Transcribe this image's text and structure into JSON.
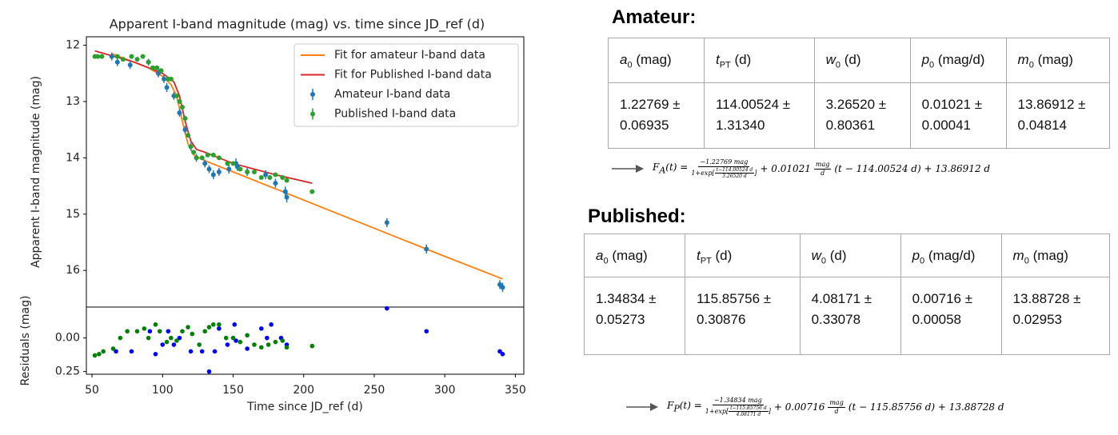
{
  "chart_data": [
    {
      "type": "scatter",
      "title": "Apparent I-band magnitude (mag) vs. time since JD_ref (d)",
      "y_label": "Apparent I-band magnitude (mag)",
      "xlim": [
        46,
        356
      ],
      "ylim": [
        11.85,
        16.65
      ],
      "y_inverted": true,
      "yticks": [
        12,
        13,
        14,
        15,
        16
      ],
      "legend": "upper right",
      "series": [
        {
          "name": "Fit for amateur I-band data",
          "color": "#ff7f0e",
          "style": "line",
          "x": [
            64,
            90,
            100,
            106,
            110,
            114,
            118,
            122,
            130,
            150,
            200,
            250,
            300,
            341
          ],
          "values": [
            12.15,
            12.4,
            12.55,
            12.7,
            12.9,
            13.35,
            13.75,
            13.95,
            14.05,
            14.25,
            14.75,
            15.25,
            15.75,
            16.15
          ]
        },
        {
          "name": "Fit for Published I-band data",
          "color": "#d62728",
          "style": "line",
          "x": [
            52,
            80,
            100,
            108,
            112,
            116,
            120,
            124,
            130,
            150,
            180,
            206
          ],
          "values": [
            12.1,
            12.3,
            12.5,
            12.65,
            12.9,
            13.35,
            13.7,
            13.85,
            13.9,
            14.1,
            14.3,
            14.45
          ]
        },
        {
          "name": "Amateur I-band data",
          "color": "#1f77b4",
          "style": "errorbar",
          "x": [
            64,
            68,
            77,
            90,
            97,
            101,
            103,
            108,
            112,
            116,
            120,
            124,
            130,
            133,
            136,
            140,
            147,
            152,
            153,
            160,
            173,
            180,
            187,
            188,
            259,
            287,
            339,
            341
          ],
          "values": [
            12.2,
            12.3,
            12.35,
            12.3,
            12.5,
            12.6,
            12.75,
            12.9,
            13.2,
            13.5,
            13.8,
            14.0,
            14.1,
            14.2,
            14.3,
            14.25,
            14.2,
            14.1,
            14.15,
            14.25,
            14.3,
            14.45,
            14.6,
            14.7,
            15.15,
            15.62,
            16.25,
            16.3
          ],
          "errors": [
            0.07,
            0.07,
            0.07,
            0.06,
            0.07,
            0.07,
            0.08,
            0.07,
            0.07,
            0.07,
            0.07,
            0.07,
            0.07,
            0.07,
            0.08,
            0.07,
            0.08,
            0.09,
            0.08,
            0.07,
            0.08,
            0.08,
            0.09,
            0.09,
            0.08,
            0.08,
            0.08,
            0.08
          ]
        },
        {
          "name": "Published I-band data",
          "color": "#2ca02c",
          "style": "errorbar",
          "x": [
            52,
            54,
            57,
            68,
            72,
            78,
            82,
            86,
            90,
            93,
            96,
            99,
            104,
            106,
            110,
            112,
            114,
            116,
            118,
            120,
            122,
            124,
            128,
            132,
            136,
            140,
            146,
            150,
            155,
            160,
            165,
            170,
            176,
            180,
            185,
            188,
            206
          ],
          "values": [
            12.2,
            12.2,
            12.2,
            12.2,
            12.25,
            12.2,
            12.25,
            12.2,
            12.3,
            12.4,
            12.4,
            12.45,
            12.6,
            12.6,
            12.9,
            13.0,
            13.1,
            13.3,
            13.6,
            13.8,
            13.9,
            14.0,
            14.0,
            13.95,
            13.95,
            14.0,
            14.1,
            14.1,
            14.2,
            14.25,
            14.25,
            14.35,
            14.35,
            14.3,
            14.35,
            14.4,
            14.6
          ],
          "errors": [
            0.03,
            0.03,
            0.03,
            0.03,
            0.03,
            0.03,
            0.03,
            0.03,
            0.03,
            0.03,
            0.03,
            0.03,
            0.03,
            0.03,
            0.03,
            0.03,
            0.03,
            0.03,
            0.03,
            0.03,
            0.03,
            0.03,
            0.03,
            0.03,
            0.03,
            0.03,
            0.03,
            0.03,
            0.03,
            0.03,
            0.03,
            0.03,
            0.03,
            0.03,
            0.03,
            0.03,
            0.03
          ]
        }
      ]
    },
    {
      "type": "scatter",
      "x_label": "Time since JD_ref (d)",
      "y_label": "Residuals (mag)",
      "xlim": [
        46,
        356
      ],
      "ylim": [
        -0.23,
        0.27
      ],
      "y_inverted": true,
      "xticks": [
        50,
        100,
        150,
        200,
        250,
        300,
        350
      ],
      "yticks": [
        {
          "value": 0,
          "label": "0.00"
        },
        {
          "value": 0.25,
          "label": "0.25"
        }
      ],
      "series": [
        {
          "color": "#0000ff",
          "style": "dot",
          "x": [
            67,
            78,
            91,
            95,
            100,
            104,
            108,
            112,
            120,
            128,
            133,
            137,
            140,
            146,
            151,
            152,
            160,
            170,
            174,
            177,
            184,
            188,
            259,
            287,
            339,
            341
          ],
          "values": [
            0.1,
            0.1,
            -0.05,
            0.12,
            0.05,
            -0.05,
            0.05,
            0.0,
            0.1,
            0.1,
            0.25,
            0.1,
            -0.07,
            0.05,
            -0.1,
            0.02,
            0.08,
            -0.07,
            0.0,
            -0.1,
            0.0,
            0.05,
            -0.22,
            -0.05,
            0.1,
            0.12
          ]
        },
        {
          "color": "#008000",
          "style": "dot",
          "x": [
            52,
            55,
            58,
            65,
            70,
            75,
            82,
            87,
            90,
            95,
            98,
            103,
            106,
            110,
            114,
            118,
            121,
            126,
            130,
            133,
            136,
            140,
            145,
            150,
            155,
            160,
            165,
            170,
            175,
            180,
            185,
            188,
            206
          ],
          "values": [
            0.13,
            0.12,
            0.1,
            0.08,
            0.0,
            -0.05,
            -0.05,
            -0.07,
            0.0,
            -0.1,
            -0.05,
            0.03,
            0.0,
            0.02,
            -0.05,
            -0.08,
            -0.03,
            0.05,
            -0.05,
            -0.08,
            -0.1,
            -0.1,
            0.0,
            0.0,
            0.03,
            -0.02,
            0.05,
            0.07,
            0.05,
            0.03,
            0.02,
            0.07,
            0.06
          ]
        }
      ]
    }
  ],
  "amateur": {
    "heading": "Amateur:",
    "table": {
      "header": [
        {
          "symbol": "a",
          "sub": "0",
          "unit": "(mag)"
        },
        {
          "symbol": "t",
          "sub": "PT",
          "unit": "(d)"
        },
        {
          "symbol": "w",
          "sub": "0",
          "unit": "(d)"
        },
        {
          "symbol": "p",
          "sub": "0",
          "unit": "(mag/d)"
        },
        {
          "symbol": "m",
          "sub": "0",
          "unit": "(mag)"
        }
      ],
      "row": [
        "1.22769 ± 0.06935",
        "114.00524 ± 1.31340",
        "3.26520 ± 0.80361",
        "0.01021 ± 0.00041",
        "13.86912 ± 0.04814"
      ]
    },
    "formula": {
      "lhs": "F",
      "lhs_sub": "A",
      "lhs_arg": "(t) =",
      "num": "−1.22769 mag",
      "den_pre": "1+exp[",
      "den_num": "t−114.00524 d",
      "den_den": "3.26520 d",
      "den_post": "]",
      "mid": "+ 0.01021",
      "unit_num": "mag",
      "unit_den": "d",
      "tail": "(t − 114.00524 d) + 13.86912 d"
    }
  },
  "published": {
    "heading": "Published:",
    "table": {
      "header": [
        {
          "symbol": "a",
          "sub": "0",
          "unit": "(mag)"
        },
        {
          "symbol": "t",
          "sub": "PT",
          "unit": "(d)"
        },
        {
          "symbol": "w",
          "sub": "0",
          "unit": "(d)"
        },
        {
          "symbol": "p",
          "sub": "0",
          "unit": "(mag/d)"
        },
        {
          "symbol": "m",
          "sub": "0",
          "unit": "(mag)"
        }
      ],
      "row": [
        "1.34834 ± 0.05273",
        "115.85756 ± 0.30876",
        "4.08171 ± 0.33078",
        "0.00716 ± 0.00058",
        "13.88728 ± 0.02953"
      ]
    },
    "formula": {
      "lhs": "F",
      "lhs_sub": "P",
      "lhs_arg": "(t) =",
      "num": "−1.34834 mag",
      "den_pre": "1+exp[",
      "den_num": "t−115.85756 d",
      "den_den": "4.08171 d",
      "den_post": "]",
      "mid": "+ 0.00716",
      "unit_num": "mag",
      "unit_den": "d",
      "tail": "(t − 115.85756 d) + 13.88728 d"
    }
  }
}
